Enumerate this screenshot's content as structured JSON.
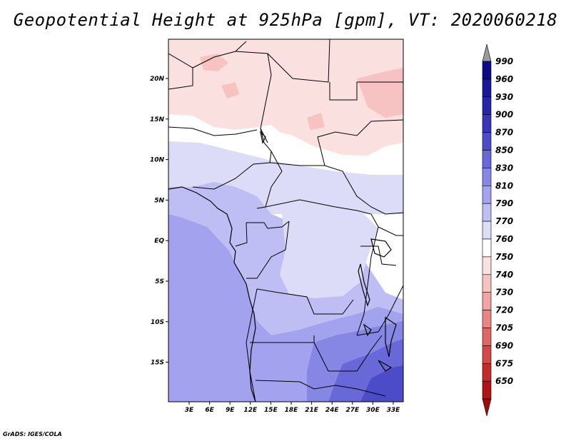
{
  "title": "Geopotential Height at 925hPa [gpm], VT: 2020060218",
  "credit": "GrADS: IGES/COLA",
  "map": {
    "lon_ticks": [
      "3E",
      "6E",
      "9E",
      "12E",
      "15E",
      "18E",
      "21E",
      "24E",
      "27E",
      "30E",
      "33E"
    ],
    "lat_ticks": [
      "20N",
      "15N",
      "10N",
      "5N",
      "EQ",
      "5S",
      "10S",
      "15S"
    ]
  },
  "colorbar": {
    "levels": [
      {
        "label": "990",
        "color": "#0a0a8a"
      },
      {
        "label": "960",
        "color": "#18189a"
      },
      {
        "label": "930",
        "color": "#2626a8"
      },
      {
        "label": "900",
        "color": "#3636b8"
      },
      {
        "label": "870",
        "color": "#4c4cc8"
      },
      {
        "label": "850",
        "color": "#6868d8"
      },
      {
        "label": "830",
        "color": "#8686e4"
      },
      {
        "label": "810",
        "color": "#a2a2ee"
      },
      {
        "label": "790",
        "color": "#bebef4"
      },
      {
        "label": "770",
        "color": "#dcdcf8"
      },
      {
        "label": "760",
        "color": "#ffffff"
      },
      {
        "label": "750",
        "color": "#fbe0e0"
      },
      {
        "label": "740",
        "color": "#f6c2c2"
      },
      {
        "label": "730",
        "color": "#f0a4a4"
      },
      {
        "label": "720",
        "color": "#e88686"
      },
      {
        "label": "705",
        "color": "#e06666"
      },
      {
        "label": "690",
        "color": "#d44848"
      },
      {
        "label": "675",
        "color": "#c42c2c"
      },
      {
        "label": "650",
        "color": "#b01414"
      }
    ],
    "top_arrow_color": "#9a9a9a",
    "bottom_arrow_color": "#a00a0a"
  }
}
